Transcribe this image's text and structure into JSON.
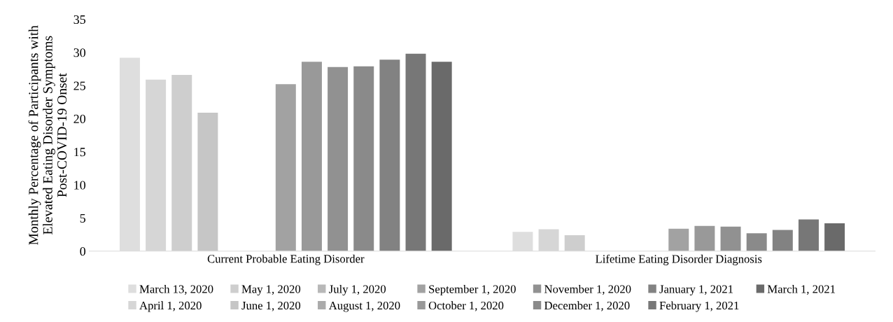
{
  "chart_data": {
    "type": "bar",
    "ylabel": "Monthly Percentage of Participants with Elevated Eating Disorder Symptoms Post-COVID-19 Onset",
    "categories": [
      "Current Probable Eating Disorder",
      "Lifetime Eating Disorder Diagnosis"
    ],
    "series": [
      {
        "name": "March 13, 2020",
        "color": "#dedede",
        "values": [
          29.2,
          2.9
        ]
      },
      {
        "name": "April 1, 2020",
        "color": "#d6d6d6",
        "values": [
          25.9,
          3.3
        ]
      },
      {
        "name": "May 1, 2020",
        "color": "#cecece",
        "values": [
          26.6,
          2.4
        ]
      },
      {
        "name": "June 1, 2020",
        "color": "#c6c6c6",
        "values": [
          20.9,
          null
        ]
      },
      {
        "name": "July 1, 2020",
        "color": "#b8b8b8",
        "values": [
          null,
          null
        ]
      },
      {
        "name": "August 1, 2020",
        "color": "#ababab",
        "values": [
          null,
          null
        ]
      },
      {
        "name": "September 1, 2020",
        "color": "#a2a2a2",
        "values": [
          25.2,
          3.4
        ]
      },
      {
        "name": "October 1, 2020",
        "color": "#999999",
        "values": [
          28.6,
          3.8
        ]
      },
      {
        "name": "November 1, 2020",
        "color": "#919191",
        "values": [
          27.8,
          3.7
        ]
      },
      {
        "name": "December 1, 2020",
        "color": "#8a8a8a",
        "values": [
          27.9,
          2.7
        ]
      },
      {
        "name": "January 1, 2021",
        "color": "#828282",
        "values": [
          28.9,
          3.2
        ]
      },
      {
        "name": "February 1, 2021",
        "color": "#777777",
        "values": [
          29.8,
          4.8
        ]
      },
      {
        "name": "March 1, 2021",
        "color": "#6a6a6a",
        "values": [
          28.6,
          4.2
        ]
      }
    ],
    "ylim": [
      0,
      35
    ],
    "yticks": [
      0,
      5,
      10,
      15,
      20,
      25,
      30,
      35
    ],
    "grid": false,
    "legend": "bottom"
  }
}
